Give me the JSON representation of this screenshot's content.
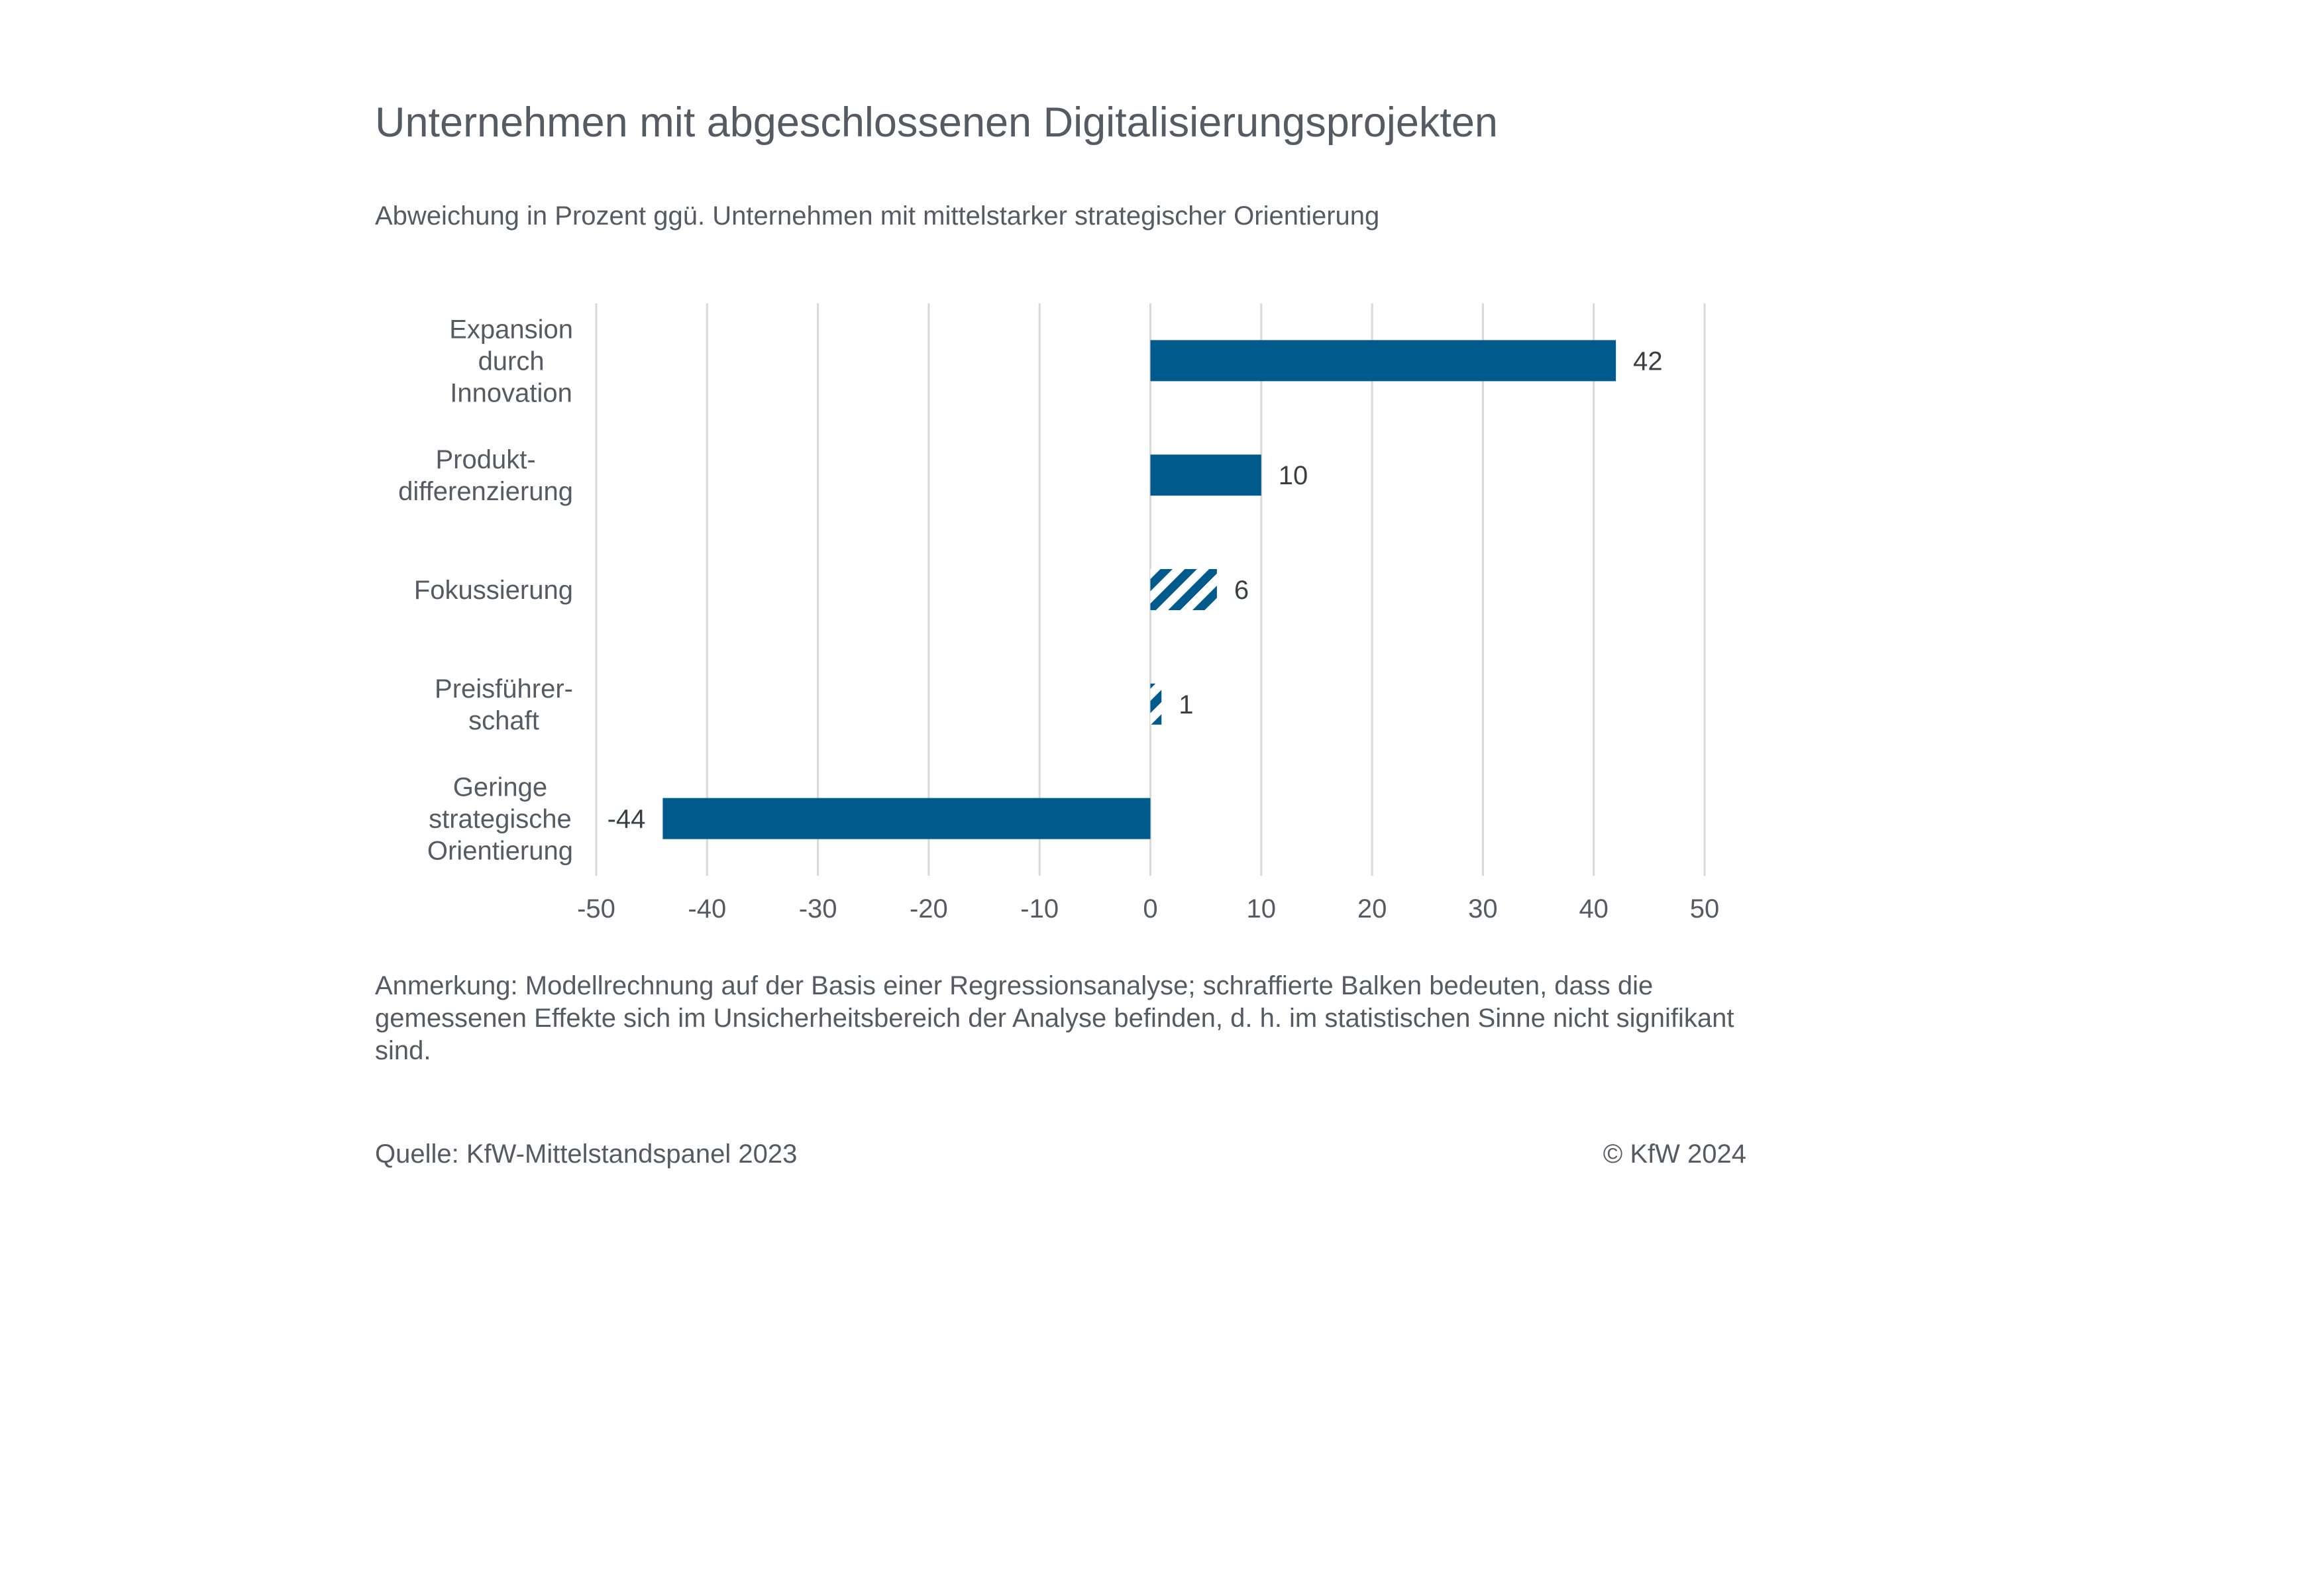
{
  "header": {
    "title": "Unternehmen mit abgeschlossenen Digitalisierungsprojekten",
    "subtitle": "Abweichung in Prozent ggü. Unternehmen mit mittelstarker strategischer Orientierung"
  },
  "footer": {
    "note": "Anmerkung: Modellrechnung auf der Basis einer Regressionsanalyse; schraffierte Balken bedeuten, dass die gemessenen Effekte sich im Unsicherheitsbereich der Analyse befinden, d. h. im statistischen Sinne nicht signifikant sind.",
    "source": "Quelle: KfW-Mittelstandspanel 2023",
    "copyright": "© KfW 2024"
  },
  "colors": {
    "bar": "#005a8c",
    "grid": "#d9d9d9",
    "text": "#555b62"
  },
  "chart_data": {
    "type": "bar",
    "orientation": "horizontal",
    "title": "Unternehmen mit abgeschlossenen Digitalisierungsprojekten",
    "subtitle": "Abweichung in Prozent ggü. Unternehmen mit mittelstarker strategischer Orientierung",
    "categories": [
      [
        "Expansion",
        "durch",
        "Innovation"
      ],
      [
        "Produkt-",
        "differenzierung"
      ],
      [
        "Fokussierung"
      ],
      [
        "Preisführer-",
        "schaft"
      ],
      [
        "Geringe",
        "strategische",
        "Orientierung"
      ]
    ],
    "values": [
      42,
      10,
      6,
      1,
      -44
    ],
    "hatched": [
      false,
      false,
      true,
      true,
      false
    ],
    "xlim": [
      -50,
      50
    ],
    "xticks": [
      -50,
      -40,
      -30,
      -20,
      -10,
      0,
      10,
      20,
      30,
      40,
      50
    ],
    "grid": "vertical",
    "legend": "none"
  }
}
